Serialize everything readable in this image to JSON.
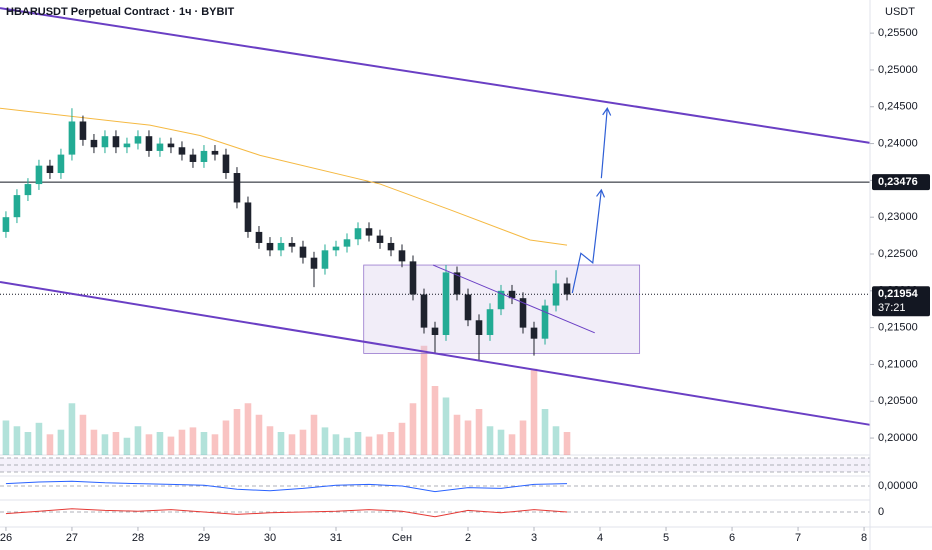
{
  "chart_data": {
    "type": "candlestick",
    "title": "HBARUSDT Perpetual Contract · 1ч · BYBIT",
    "currency": "USDT",
    "xlim": [
      -0.09,
      13.09
    ],
    "ylim": [
      0.1977,
      0.2595
    ],
    "xticks": [
      {
        "value": 0,
        "label": "26"
      },
      {
        "value": 1,
        "label": "27"
      },
      {
        "value": 2,
        "label": "28"
      },
      {
        "value": 3,
        "label": "29"
      },
      {
        "value": 4,
        "label": "30"
      },
      {
        "value": 5,
        "label": "31"
      },
      {
        "value": 6,
        "label": "Сен"
      },
      {
        "value": 7,
        "label": "2"
      },
      {
        "value": 8,
        "label": "3"
      },
      {
        "value": 9,
        "label": "4"
      },
      {
        "value": 10,
        "label": "5"
      },
      {
        "value": 11,
        "label": "6"
      },
      {
        "value": 12,
        "label": "7"
      },
      {
        "value": 13,
        "label": "8"
      }
    ],
    "yticks": [
      {
        "value": 0.255,
        "label": "0,25500"
      },
      {
        "value": 0.25,
        "label": "0,25000"
      },
      {
        "value": 0.245,
        "label": "0,24500"
      },
      {
        "value": 0.24,
        "label": "0,24000"
      },
      {
        "value": 0.235,
        "label": "0,23500"
      },
      {
        "value": 0.23,
        "label": "0,23000"
      },
      {
        "value": 0.225,
        "label": "0,22500"
      },
      {
        "value": 0.22,
        "label": "0,22000"
      },
      {
        "value": 0.215,
        "label": "0,21500"
      },
      {
        "value": 0.21,
        "label": "0,21000"
      },
      {
        "value": 0.205,
        "label": "0,20500"
      },
      {
        "value": 0.2,
        "label": "0,20000"
      }
    ],
    "up_color": "#22ab94",
    "down_color": "#1e222d",
    "x": [
      0,
      0.1667,
      0.3333,
      0.5,
      0.6667,
      0.8333,
      1,
      1.1667,
      1.3333,
      1.5,
      1.6667,
      1.8333,
      2,
      2.1667,
      2.3333,
      2.5,
      2.6667,
      2.8333,
      3,
      3.1667,
      3.3333,
      3.5,
      3.6667,
      3.8333,
      4,
      4.1667,
      4.3333,
      4.5,
      4.6667,
      4.8333,
      5,
      5.1667,
      5.3333,
      5.5,
      5.6667,
      5.8333,
      6,
      6.1667,
      6.3333,
      6.5,
      6.6667,
      6.8333,
      7,
      7.1667,
      7.3333,
      7.5,
      7.6667,
      7.8333,
      8,
      8.1667,
      8.3333,
      8.5
    ],
    "open": [
      0.228,
      0.23,
      0.233,
      0.2345,
      0.237,
      0.236,
      0.2385,
      0.243,
      0.2405,
      0.2395,
      0.241,
      0.2395,
      0.24,
      0.241,
      0.239,
      0.24,
      0.2395,
      0.2385,
      0.2375,
      0.239,
      0.2385,
      0.236,
      0.232,
      0.228,
      0.2265,
      0.2255,
      0.2265,
      0.226,
      0.2245,
      0.223,
      0.2255,
      0.226,
      0.227,
      0.2285,
      0.2275,
      0.2265,
      0.2255,
      0.224,
      0.2195,
      0.215,
      0.214,
      0.2225,
      0.2195,
      0.216,
      0.214,
      0.2175,
      0.22,
      0.219,
      0.215,
      0.2135,
      0.218,
      0.221
    ],
    "high": [
      0.2308,
      0.2338,
      0.2353,
      0.2378,
      0.2378,
      0.2393,
      0.2448,
      0.2438,
      0.2413,
      0.2418,
      0.2418,
      0.2408,
      0.2418,
      0.2418,
      0.2408,
      0.2408,
      0.2403,
      0.2393,
      0.2398,
      0.2398,
      0.2393,
      0.2368,
      0.2328,
      0.2288,
      0.2273,
      0.2273,
      0.2273,
      0.2268,
      0.2253,
      0.2263,
      0.2268,
      0.2278,
      0.2293,
      0.2293,
      0.2283,
      0.2273,
      0.2263,
      0.2248,
      0.2203,
      0.2158,
      0.2235,
      0.2233,
      0.2203,
      0.2168,
      0.2183,
      0.2208,
      0.2208,
      0.2198,
      0.2158,
      0.2188,
      0.2228,
      0.2218
    ],
    "low": [
      0.2272,
      0.2292,
      0.2322,
      0.2337,
      0.2352,
      0.2352,
      0.2377,
      0.2397,
      0.2387,
      0.2387,
      0.2387,
      0.2387,
      0.2392,
      0.2382,
      0.2382,
      0.2387,
      0.2377,
      0.2367,
      0.2367,
      0.2377,
      0.2352,
      0.2312,
      0.2272,
      0.2257,
      0.2247,
      0.2247,
      0.2252,
      0.2237,
      0.2205,
      0.2222,
      0.2247,
      0.2252,
      0.2262,
      0.2267,
      0.2257,
      0.2247,
      0.2232,
      0.2187,
      0.2142,
      0.2115,
      0.2132,
      0.2187,
      0.2152,
      0.2105,
      0.2132,
      0.2167,
      0.2182,
      0.2142,
      0.2112,
      0.2127,
      0.2172,
      0.2187
    ],
    "close": [
      0.23,
      0.233,
      0.2345,
      0.237,
      0.236,
      0.2385,
      0.243,
      0.2405,
      0.2395,
      0.241,
      0.2395,
      0.24,
      0.241,
      0.239,
      0.24,
      0.2395,
      0.2385,
      0.2375,
      0.239,
      0.2385,
      0.236,
      0.232,
      0.228,
      0.2265,
      0.2255,
      0.2265,
      0.226,
      0.2245,
      0.223,
      0.2255,
      0.226,
      0.227,
      0.2285,
      0.2275,
      0.2265,
      0.2255,
      0.224,
      0.2195,
      0.215,
      0.214,
      0.2225,
      0.2195,
      0.216,
      0.214,
      0.2175,
      0.22,
      0.219,
      0.215,
      0.2135,
      0.218,
      0.221,
      0.2195
    ],
    "volume_lim": [
      0,
      100
    ],
    "volume": [
      30,
      25,
      20,
      28,
      18,
      22,
      45,
      35,
      22,
      18,
      20,
      15,
      25,
      18,
      20,
      16,
      22,
      24,
      20,
      18,
      30,
      40,
      45,
      35,
      25,
      20,
      18,
      22,
      35,
      24,
      18,
      15,
      20,
      16,
      18,
      20,
      28,
      45,
      95,
      60,
      50,
      35,
      30,
      40,
      25,
      22,
      18,
      30,
      75,
      40,
      25,
      20
    ],
    "ma": {
      "color": "#f5b942",
      "x": [
        -0.09,
        2.18,
        2.94,
        3.85,
        5.67,
        6.73,
        7.94,
        8.5
      ],
      "values": [
        0.2448,
        0.2425,
        0.2411,
        0.2384,
        0.2345,
        0.231,
        0.2269,
        0.2262
      ]
    },
    "channel_color": "#6a3fc4",
    "channel_top": {
      "x": [
        -0.09,
        13.09
      ],
      "values": [
        0.2584,
        0.2401
      ]
    },
    "channel_bottom": {
      "x": [
        -0.09,
        13.09
      ],
      "values": [
        0.2212,
        0.2018
      ]
    },
    "box": {
      "x": [
        5.42,
        9.6
      ],
      "values": [
        0.2235,
        0.2115
      ]
    },
    "trendline": {
      "x": [
        6.47,
        8.92
      ],
      "values": [
        0.2235,
        0.2143
      ]
    },
    "arrow_color": "#2f5fd6",
    "arrows": [
      {
        "x": [
          8.58,
          8.71,
          8.89,
          9.02
        ],
        "values": [
          0.2197,
          0.2251,
          0.2238,
          0.2337
        ]
      },
      {
        "x": [
          9.02,
          9.11
        ],
        "values": [
          0.2353,
          0.2448
        ]
      }
    ],
    "hline": {
      "value": 0.23476,
      "label": "0,23476"
    },
    "last_price": {
      "value": 0.21954,
      "label": "0,21954",
      "countdown": "37:21"
    },
    "oscillator": {
      "label": "0,00000",
      "ylim": [
        -1,
        1
      ],
      "x": [
        0,
        0.5,
        1,
        1.5,
        2,
        2.5,
        3,
        3.5,
        4,
        4.5,
        5,
        5.5,
        6,
        6.5,
        7,
        7.5,
        8,
        8.5
      ],
      "values": [
        0.3,
        0.5,
        0.6,
        0.4,
        0.3,
        0.2,
        0.1,
        -0.4,
        -0.6,
        -0.3,
        0.1,
        0.2,
        0.0,
        -0.7,
        -0.2,
        -0.3,
        0.2,
        0.3
      ]
    },
    "momentum": {
      "label": "0",
      "ylim": [
        -1,
        1
      ],
      "x": [
        0,
        0.5,
        1,
        1.5,
        2,
        2.5,
        3,
        3.5,
        4,
        4.5,
        5,
        5.5,
        6,
        6.5,
        7,
        7.5,
        8,
        8.5
      ],
      "values": [
        -0.2,
        0.1,
        0.4,
        0.2,
        0.1,
        0.3,
        0.0,
        -0.3,
        -0.1,
        0.0,
        0.1,
        0.3,
        0.1,
        -0.6,
        0.2,
        -0.1,
        0.3,
        0.0
      ]
    }
  }
}
